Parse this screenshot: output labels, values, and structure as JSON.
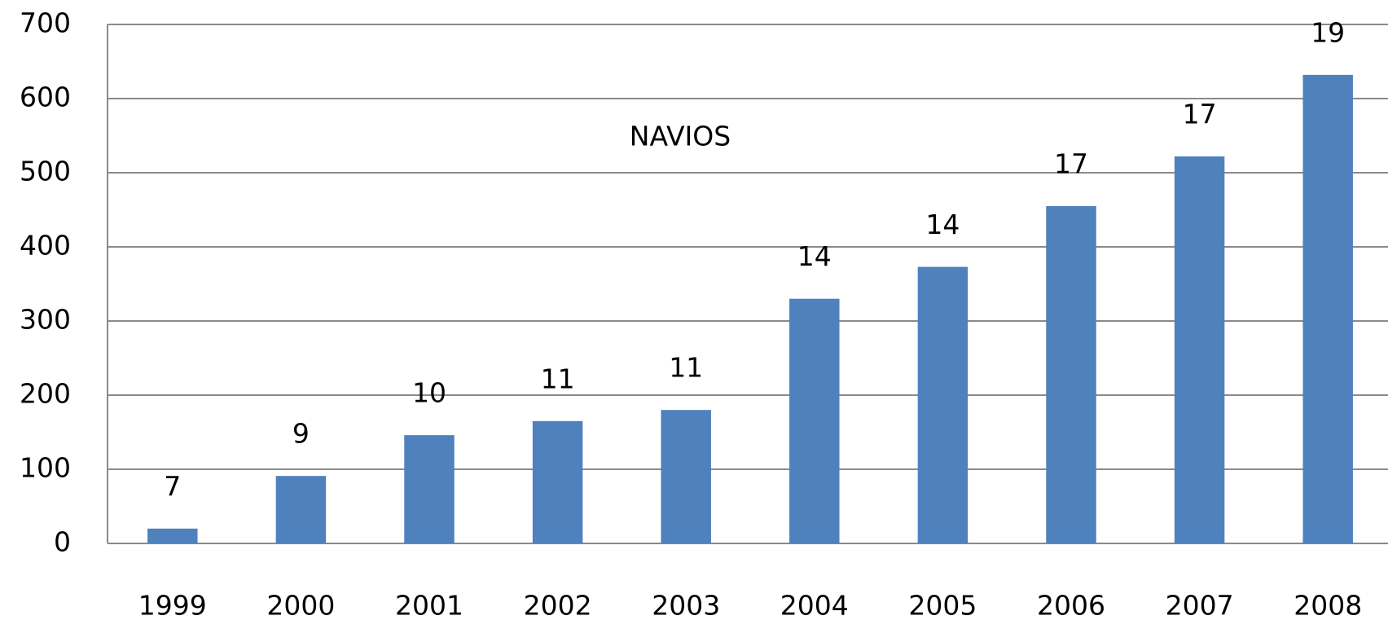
{
  "chart_data": {
    "type": "bar",
    "annotation": {
      "text": "NAVIOS",
      "values": [
        7,
        9,
        10,
        11,
        11,
        14,
        14,
        17,
        17,
        19
      ]
    },
    "categories": [
      "1999",
      "2000",
      "2001",
      "2002",
      "2003",
      "2004",
      "2005",
      "2006",
      "2007",
      "2008"
    ],
    "values": [
      20,
      91,
      146,
      165,
      180,
      330,
      373,
      455,
      522,
      632
    ],
    "color": "#4f81bd",
    "ylim": [
      0,
      700
    ],
    "yticks": [
      0,
      100,
      200,
      300,
      400,
      500,
      600,
      700
    ],
    "grid": true
  }
}
